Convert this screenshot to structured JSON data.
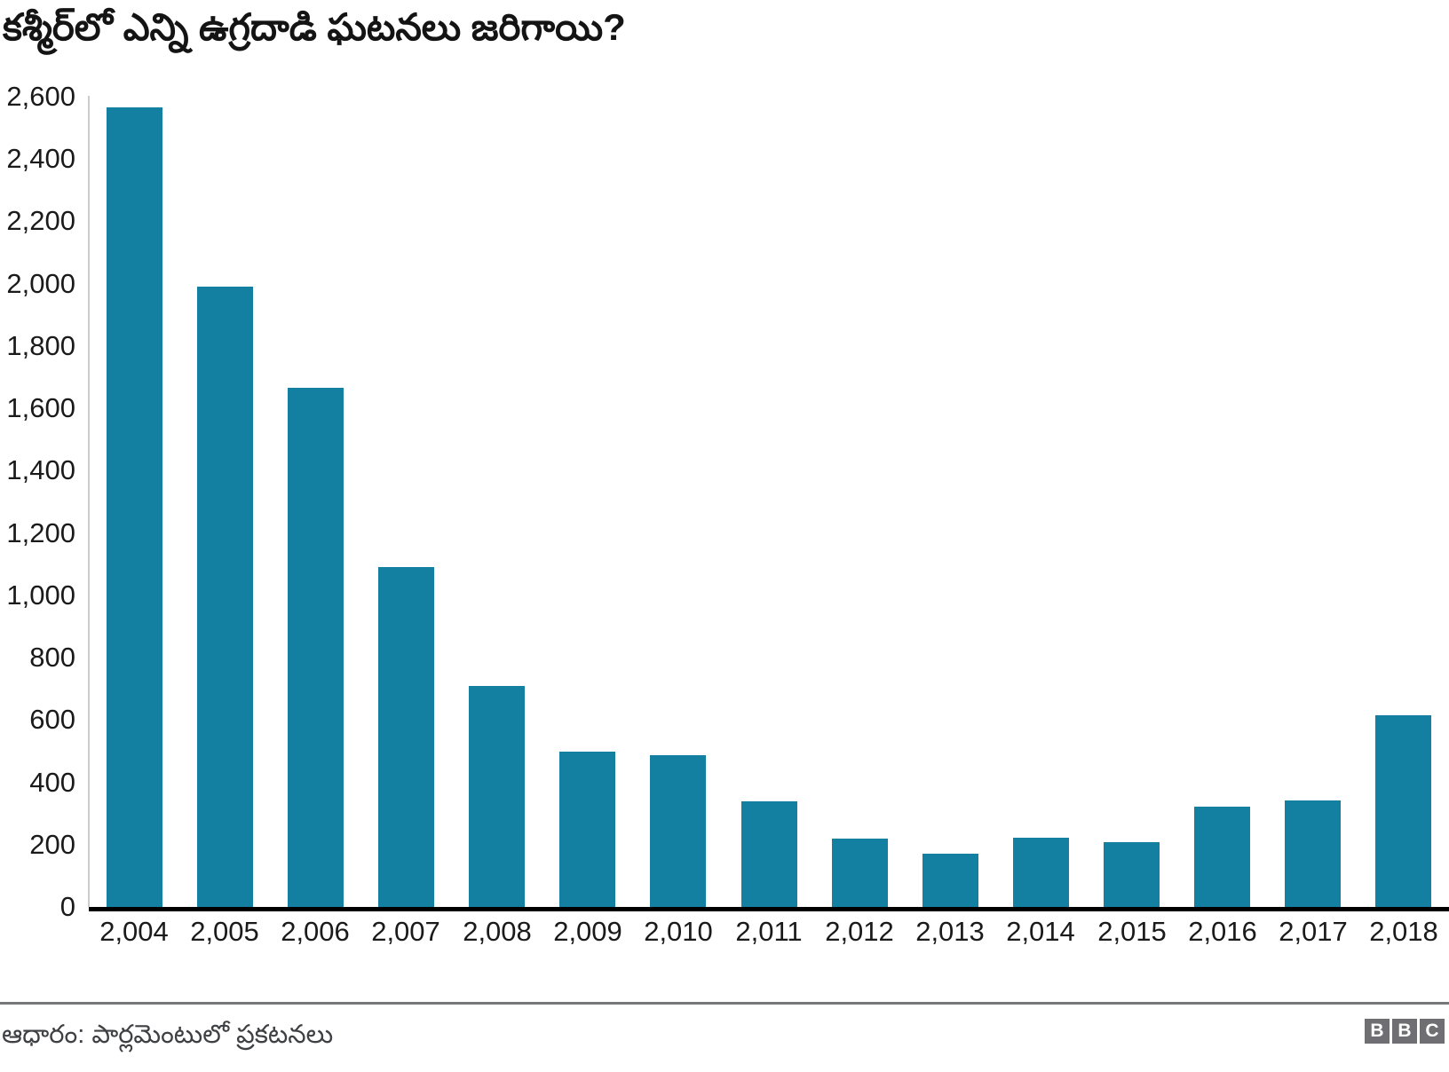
{
  "header": {
    "title": "కశ్మీర్‌లో ఎన్ని ఉగ్రదాడి ఘటనలు జరిగాయి?"
  },
  "chart_data": {
    "type": "bar",
    "title": "కశ్మీర్‌లో ఎన్ని ఉగ్రదాడి ఘటనలు జరిగాయి?",
    "categories": [
      "2,004",
      "2,005",
      "2,006",
      "2,007",
      "2,008",
      "2,009",
      "2,010",
      "2,011",
      "2,012",
      "2,013",
      "2,014",
      "2,015",
      "2,016",
      "2,017",
      "2,018"
    ],
    "values": [
      2565,
      1990,
      1667,
      1092,
      708,
      499,
      488,
      340,
      220,
      170,
      222,
      208,
      322,
      342,
      614
    ],
    "xlabel": "",
    "ylabel": "",
    "ylim": [
      0,
      2600
    ],
    "y_tick_step": 200,
    "y_tick_labels": [
      "0",
      "200",
      "400",
      "600",
      "800",
      "1,000",
      "1,200",
      "1,400",
      "1,600",
      "1,800",
      "2,000",
      "2,200",
      "2,400",
      "2,600"
    ],
    "grid": false,
    "legend": false,
    "bar_color": "#1380A1"
  },
  "footer": {
    "source": "ఆధారం: పార్లమెంటులో ప్రకటనలు",
    "logo_blocks": [
      "B",
      "B",
      "C"
    ]
  },
  "colors": {
    "bar": "#1380A1",
    "axis": "#000000",
    "grid": "#cccccc",
    "divider": "#76777a",
    "footer_text": "#3f4043",
    "logo_bg": "#6e6e73"
  }
}
